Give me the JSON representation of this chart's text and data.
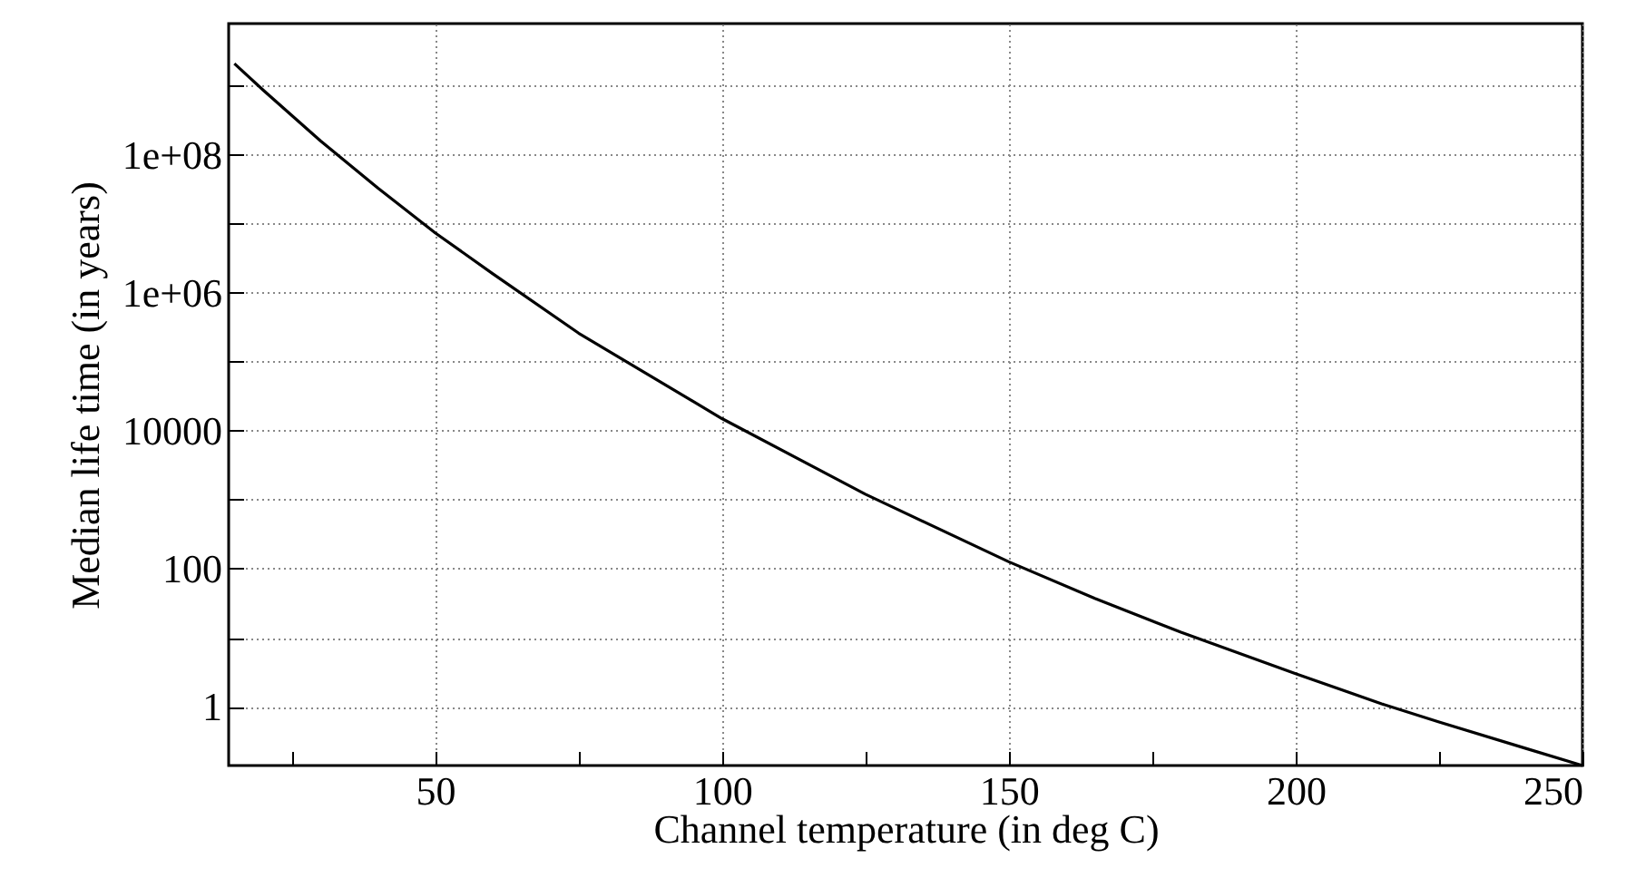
{
  "chart_data": {
    "type": "line",
    "xlabel": "Channel temperature (in deg C)",
    "ylabel": "Median life time (in years)",
    "x": [
      15,
      20,
      30,
      40,
      50,
      60,
      75,
      100,
      125,
      150,
      165,
      180,
      200,
      215,
      225,
      240,
      250
    ],
    "series": [
      {
        "color": "#000000",
        "values": [
          2100000000,
          870000000,
          160000000,
          33000000,
          7400000,
          1900000,
          260000,
          15000,
          1200,
          126,
          37,
          12,
          3,
          1.1,
          0.6,
          0.25,
          0.14
        ]
      }
    ],
    "log": "y",
    "xlim": [
      14,
      250
    ],
    "ylim": [
      0.14,
      8000000000
    ],
    "xticks": [
      {
        "value": 25,
        "label": null
      },
      50,
      {
        "value": 75,
        "label": null
      },
      100,
      {
        "value": 125,
        "label": null
      },
      150,
      {
        "value": 175,
        "label": null
      },
      200,
      {
        "value": 225,
        "label": null
      },
      250
    ],
    "yticks": [
      1,
      {
        "value": 10,
        "label": null
      },
      100,
      {
        "value": 1000,
        "label": null
      },
      10000,
      {
        "value": 100000,
        "label": null
      },
      {
        "value": 1000000,
        "label": "1e+06"
      },
      {
        "value": 10000000,
        "label": null
      },
      {
        "value": 100000000,
        "label": "1e+08"
      },
      {
        "value": 1000000000,
        "label": null
      }
    ],
    "grid": true,
    "line_style": "solid",
    "marker": "none"
  }
}
